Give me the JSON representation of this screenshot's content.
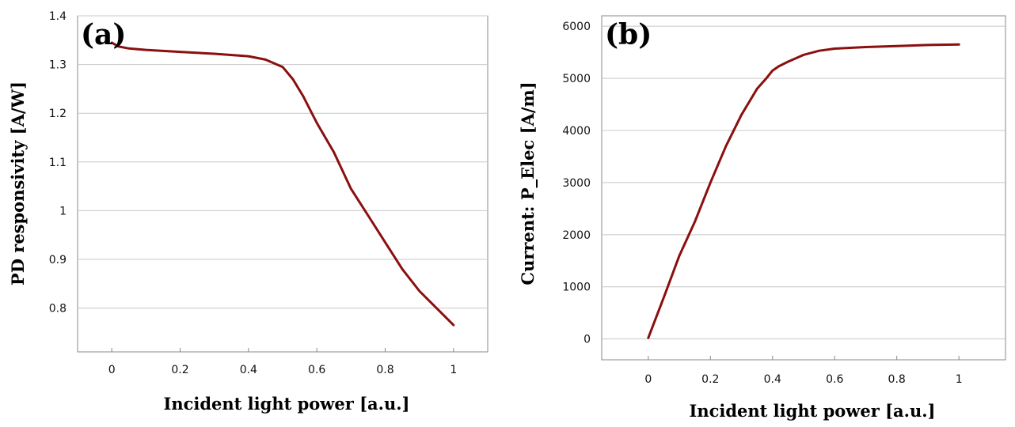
{
  "colors": {
    "curve": "#8b0f0f",
    "grid": "#c8c8c8",
    "frame": "#888888"
  },
  "chart_data": [
    {
      "type": "line",
      "panel_label": "(a)",
      "xlabel": "Incident light power [a.u.]",
      "ylabel": "PD responsivity [A/W]",
      "xlim": [
        -0.1,
        1.1
      ],
      "ylim": [
        0.71,
        1.4
      ],
      "xticks": [
        0,
        0.2,
        0.4,
        0.6,
        0.8,
        1
      ],
      "xtick_labels": [
        "0",
        "0.2",
        "0.4",
        "0.6",
        "0.8",
        "1"
      ],
      "yticks": [
        0.8,
        0.9,
        1,
        1.1,
        1.2,
        1.3,
        1.4
      ],
      "ytick_labels": [
        "0.8",
        "0.9",
        "1",
        "1.1",
        "1.2",
        "1.3",
        "1.4"
      ],
      "grid": true,
      "series": [
        {
          "x": [
            0,
            0.02,
            0.05,
            0.1,
            0.2,
            0.3,
            0.4,
            0.45,
            0.5,
            0.53,
            0.56,
            0.6,
            0.65,
            0.7,
            0.75,
            0.8,
            0.85,
            0.9,
            0.95,
            1.0
          ],
          "y": [
            1.345,
            1.337,
            1.333,
            1.33,
            1.326,
            1.322,
            1.317,
            1.31,
            1.295,
            1.27,
            1.235,
            1.18,
            1.12,
            1.045,
            0.99,
            0.935,
            0.88,
            0.835,
            0.8,
            0.765
          ]
        }
      ]
    },
    {
      "type": "line",
      "panel_label": "(b)",
      "xlabel": "Incident light power [a.u.]",
      "ylabel": "Current: P_Elec [A/m]",
      "xlim": [
        -0.15,
        1.15
      ],
      "ylim": [
        -400,
        6200
      ],
      "xticks": [
        0,
        0.2,
        0.4,
        0.6,
        0.8,
        1
      ],
      "xtick_labels": [
        "0",
        "0.2",
        "0.4",
        "0.6",
        "0.8",
        "1"
      ],
      "yticks": [
        0,
        1000,
        2000,
        3000,
        4000,
        5000,
        6000
      ],
      "ytick_labels": [
        "0",
        "1000",
        "2000",
        "3000",
        "4000",
        "5000",
        "6000"
      ],
      "grid": true,
      "series": [
        {
          "x": [
            0,
            0.05,
            0.1,
            0.15,
            0.2,
            0.25,
            0.3,
            0.35,
            0.38,
            0.4,
            0.42,
            0.45,
            0.5,
            0.55,
            0.6,
            0.7,
            0.8,
            0.9,
            1.0
          ],
          "y": [
            20,
            800,
            1600,
            2250,
            3000,
            3700,
            4300,
            4800,
            5000,
            5150,
            5230,
            5320,
            5450,
            5530,
            5570,
            5600,
            5620,
            5640,
            5650
          ]
        }
      ]
    }
  ]
}
